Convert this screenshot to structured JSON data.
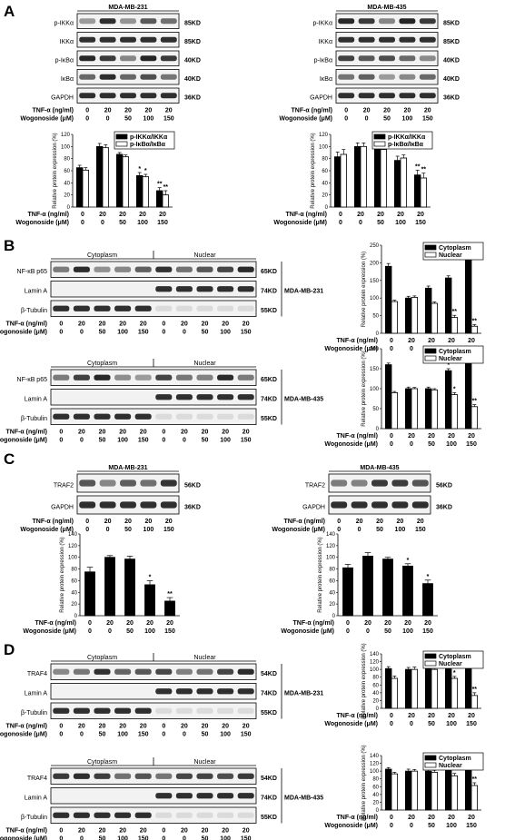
{
  "panels": [
    {
      "letter": "A",
      "blot_groups": [
        {
          "cell_line": "MDA-MB-231",
          "rows": [
            {
              "label": "p-IKKα",
              "kd": "85KD"
            },
            {
              "label": "IKKα",
              "kd": "85KD"
            },
            {
              "label": "p-IκBα",
              "kd": "40KD"
            },
            {
              "label": "IκBα",
              "kd": "40KD"
            },
            {
              "label": "GAPDH",
              "kd": "36KD"
            }
          ],
          "conditions": {
            "tnf_label": "TNF-α (ng/ml)",
            "wogonoside_label": "Wogonoside (μM)",
            "tnf": [
              "0",
              "20",
              "20",
              "20",
              "20"
            ],
            "wogonoside": [
              "0",
              "0",
              "50",
              "100",
              "150"
            ]
          }
        },
        {
          "cell_line": "MDA-MB-435",
          "rows": [
            {
              "label": "p-IKKα",
              "kd": "85KD"
            },
            {
              "label": "IKKα",
              "kd": "85KD"
            },
            {
              "label": "p-IκBα",
              "kd": "40KD"
            },
            {
              "label": "IκBα",
              "kd": "40KD"
            },
            {
              "label": "GAPDH",
              "kd": "36KD"
            }
          ],
          "conditions": {
            "tnf_label": "TNF-α (ng/ml)",
            "wogonoside_label": "Wogonoside (μM)",
            "tnf": [
              "0",
              "20",
              "20",
              "20",
              "20"
            ],
            "wogonoside": [
              "0",
              "0",
              "50",
              "100",
              "150"
            ]
          }
        }
      ]
    },
    {
      "letter": "B",
      "blot_groups": [
        {
          "cell_line": "MDA-MB-231",
          "fractions": [
            "Cytoplasm",
            "Nuclear"
          ],
          "rows": [
            {
              "label": "NF-κB p65",
              "kd": "65KD"
            },
            {
              "label": "Lamin A",
              "kd": "74KD"
            },
            {
              "label": "β-Tubulin",
              "kd": "55KD"
            }
          ],
          "conditions": {
            "tnf_label": "TNF-α (ng/ml)",
            "wogonoside_label": "Wogonoside (μM)",
            "tnf": [
              "0",
              "20",
              "20",
              "20",
              "20",
              "0",
              "20",
              "20",
              "20",
              "20"
            ],
            "wogonoside": [
              "0",
              "0",
              "50",
              "100",
              "150",
              "0",
              "0",
              "50",
              "100",
              "150"
            ]
          }
        },
        {
          "cell_line": "MDA-MB-435",
          "fractions": [
            "Cytoplasm",
            "Nuclear"
          ],
          "rows": [
            {
              "label": "NF-κB p65",
              "kd": "65KD"
            },
            {
              "label": "Lamin A",
              "kd": "74KD"
            },
            {
              "label": "β-Tubulin",
              "kd": "55KD"
            }
          ],
          "conditions": {
            "tnf_label": "TNF-α (ng/ml)",
            "wogonoside_label": "Wogonoside (μM)",
            "tnf": [
              "0",
              "20",
              "20",
              "20",
              "20",
              "0",
              "20",
              "20",
              "20",
              "20"
            ],
            "wogonoside": [
              "0",
              "0",
              "50",
              "100",
              "150",
              "0",
              "0",
              "50",
              "100",
              "150"
            ]
          }
        }
      ]
    },
    {
      "letter": "C",
      "blot_groups": [
        {
          "cell_line": "MDA-MB-231",
          "rows": [
            {
              "label": "TRAF2",
              "kd": "56KD"
            },
            {
              "label": "GAPDH",
              "kd": "36KD"
            }
          ],
          "conditions": {
            "tnf_label": "TNF-α (ng/ml)",
            "wogonoside_label": "Wogonoside (μM)",
            "tnf": [
              "0",
              "20",
              "20",
              "20",
              "20"
            ],
            "wogonoside": [
              "0",
              "0",
              "50",
              "100",
              "150"
            ]
          }
        },
        {
          "cell_line": "MDA-MB-435",
          "rows": [
            {
              "label": "TRAF2",
              "kd": "56KD"
            },
            {
              "label": "GAPDH",
              "kd": "36KD"
            }
          ],
          "conditions": {
            "tnf_label": "TNF-α (ng/ml)",
            "wogonoside_label": "Wogonoside (μM)",
            "tnf": [
              "0",
              "20",
              "20",
              "20",
              "20"
            ],
            "wogonoside": [
              "0",
              "0",
              "50",
              "100",
              "150"
            ]
          }
        }
      ]
    },
    {
      "letter": "D",
      "blot_groups": [
        {
          "cell_line": "MDA-MB-231",
          "fractions": [
            "Cytoplasm",
            "Nuclear"
          ],
          "rows": [
            {
              "label": "TRAF4",
              "kd": "54KD"
            },
            {
              "label": "Lamin A",
              "kd": "74KD"
            },
            {
              "label": "β-Tubulin",
              "kd": "55KD"
            }
          ],
          "conditions": {
            "tnf_label": "TNF-α (ng/ml)",
            "wogonoside_label": "Wogonoside (μM)",
            "tnf": [
              "0",
              "20",
              "20",
              "20",
              "20",
              "0",
              "20",
              "20",
              "20",
              "20"
            ],
            "wogonoside": [
              "0",
              "0",
              "50",
              "100",
              "150",
              "0",
              "0",
              "50",
              "100",
              "150"
            ]
          }
        },
        {
          "cell_line": "MDA-MB-435",
          "fractions": [
            "Cytoplasm",
            "Nuclear"
          ],
          "rows": [
            {
              "label": "TRAF4",
              "kd": "54KD"
            },
            {
              "label": "Lamin A",
              "kd": "74KD"
            },
            {
              "label": "β-Tubulin",
              "kd": "55KD"
            }
          ],
          "conditions": {
            "tnf_label": "TNF-α (ng/ml)",
            "wogonoside_label": "Wogonoside (μM)",
            "tnf": [
              "0",
              "20",
              "20",
              "20",
              "20",
              "0",
              "20",
              "20",
              "20",
              "20"
            ],
            "wogonoside": [
              "0",
              "0",
              "50",
              "100",
              "150",
              "0",
              "0",
              "50",
              "100",
              "150"
            ]
          }
        }
      ]
    }
  ],
  "chart_data": [
    {
      "id": "A-231",
      "type": "bar",
      "ylabel": "Relative protein expression (%)",
      "ylim": [
        0,
        120
      ],
      "yticks": [
        0,
        20,
        40,
        60,
        80,
        100,
        120
      ],
      "cond_labels": {
        "tnf": "TNF-α (ng/ml)",
        "wogonoside": "Wogonoside (μM)"
      },
      "tnf": [
        "0",
        "20",
        "20",
        "20",
        "20"
      ],
      "wogonoside": [
        "0",
        "0",
        "50",
        "100",
        "150"
      ],
      "legend": "top-right",
      "series": [
        {
          "name": "p-IKKα/IKKα",
          "fill": "#000000",
          "values": [
            65,
            100,
            87,
            52,
            27
          ],
          "errors": [
            4,
            5,
            3,
            5,
            5
          ],
          "sig": [
            "",
            "",
            "",
            "*",
            "**"
          ]
        },
        {
          "name": "p-IκBα/IκBα",
          "fill": "#ffffff",
          "values": [
            61,
            98,
            83,
            50,
            20
          ],
          "errors": [
            4,
            5,
            3,
            4,
            7
          ],
          "sig": [
            "",
            "",
            "",
            "*",
            "**"
          ]
        }
      ]
    },
    {
      "id": "A-435",
      "type": "bar",
      "ylabel": "Relative protein expression (%)",
      "ylim": [
        0,
        120
      ],
      "yticks": [
        0,
        20,
        40,
        60,
        80,
        100,
        120
      ],
      "cond_labels": {
        "tnf": "TNF-α (ng/ml)",
        "wogonoside": "Wogonoside (μM)"
      },
      "tnf": [
        "0",
        "20",
        "20",
        "20",
        "20"
      ],
      "wogonoside": [
        "0",
        "0",
        "50",
        "100",
        "150"
      ],
      "legend": "top-right",
      "series": [
        {
          "name": "p-IKKα/IKKα",
          "fill": "#000000",
          "values": [
            83,
            100,
            98,
            77,
            53
          ],
          "errors": [
            8,
            6,
            4,
            7,
            8
          ],
          "sig": [
            "",
            "",
            "",
            "",
            "**"
          ]
        },
        {
          "name": "p-IκBα/IκBα",
          "fill": "#ffffff",
          "values": [
            87,
            100,
            95,
            81,
            48
          ],
          "errors": [
            8,
            6,
            4,
            5,
            8
          ],
          "sig": [
            "",
            "",
            "",
            "",
            "**"
          ]
        }
      ]
    },
    {
      "id": "B-231",
      "type": "bar",
      "ylabel": "Relative protein expression (%)",
      "ylim": [
        0,
        250
      ],
      "yticks": [
        0,
        50,
        100,
        150,
        200,
        250
      ],
      "cond_labels": {
        "tnf": "TNF-α (ng/ml)",
        "wogonoside": "Wogonoside (μM)"
      },
      "tnf": [
        "0",
        "20",
        "20",
        "20",
        "20"
      ],
      "wogonoside": [
        "0",
        "0",
        "50",
        "100",
        "150"
      ],
      "legend": "top-right",
      "series": [
        {
          "name": "Cytoplasm",
          "fill": "#000000",
          "values": [
            190,
            100,
            128,
            157,
            228
          ],
          "errors": [
            8,
            5,
            6,
            6,
            5
          ],
          "sig": [
            "",
            "",
            "",
            "",
            "**"
          ]
        },
        {
          "name": "Nuclear",
          "fill": "#ffffff",
          "values": [
            90,
            102,
            85,
            45,
            20
          ],
          "errors": [
            4,
            4,
            4,
            6,
            5
          ],
          "sig": [
            "",
            "",
            "",
            "**",
            "**"
          ]
        }
      ]
    },
    {
      "id": "B-435",
      "type": "bar",
      "ylabel": "Relative protein expression (%)",
      "ylim": [
        0,
        200
      ],
      "yticks": [
        0,
        50,
        100,
        150,
        200
      ],
      "cond_labels": {
        "tnf": "TNF-α (ng/ml)",
        "wogonoside": "Wogonoside (μM)"
      },
      "tnf": [
        "0",
        "20",
        "20",
        "20",
        "20"
      ],
      "wogonoside": [
        "0",
        "0",
        "50",
        "100",
        "150"
      ],
      "legend": "top-right",
      "series": [
        {
          "name": "Cytoplasm",
          "fill": "#000000",
          "values": [
            160,
            100,
            100,
            145,
            165
          ],
          "errors": [
            4,
            4,
            4,
            5,
            4
          ],
          "sig": [
            "",
            "",
            "",
            "*",
            "**"
          ]
        },
        {
          "name": "Nuclear",
          "fill": "#ffffff",
          "values": [
            90,
            100,
            97,
            85,
            55
          ],
          "errors": [
            3,
            3,
            3,
            5,
            5
          ],
          "sig": [
            "",
            "",
            "",
            "*",
            "**"
          ]
        }
      ]
    },
    {
      "id": "C-231",
      "type": "bar",
      "ylabel": "Relative protein expression (%)",
      "ylim": [
        0,
        140
      ],
      "yticks": [
        0,
        20,
        40,
        60,
        80,
        100,
        120,
        140
      ],
      "cond_labels": {
        "tnf": "TNF-α (ng/ml)",
        "wogonoside": "Wogonoside (μM)"
      },
      "tnf": [
        "0",
        "20",
        "20",
        "20",
        "20"
      ],
      "wogonoside": [
        "0",
        "0",
        "50",
        "100",
        "150"
      ],
      "legend": "none",
      "series": [
        {
          "fill": "#000000",
          "values": [
            75,
            100,
            97,
            53,
            25
          ],
          "errors": [
            8,
            3,
            5,
            7,
            6
          ],
          "sig": [
            "",
            "",
            "",
            "*",
            "**"
          ]
        }
      ]
    },
    {
      "id": "C-435",
      "type": "bar",
      "ylabel": "Relative protein expression (%)",
      "ylim": [
        0,
        140
      ],
      "yticks": [
        0,
        20,
        40,
        60,
        80,
        100,
        120,
        140
      ],
      "cond_labels": {
        "tnf": "TNF-α (ng/ml)",
        "wogonoside": "Wogonoside (μM)"
      },
      "tnf": [
        "0",
        "20",
        "20",
        "20",
        "20"
      ],
      "wogonoside": [
        "0",
        "0",
        "50",
        "100",
        "150"
      ],
      "legend": "none",
      "series": [
        {
          "fill": "#000000",
          "values": [
            82,
            102,
            97,
            85,
            55
          ],
          "errors": [
            6,
            6,
            3,
            4,
            6
          ],
          "sig": [
            "",
            "",
            "",
            "*",
            "*"
          ]
        }
      ]
    },
    {
      "id": "D-231",
      "type": "bar",
      "ylabel": "Relative protein expression (%)",
      "ylim": [
        0,
        140
      ],
      "yticks": [
        0,
        20,
        40,
        60,
        80,
        100,
        120,
        140
      ],
      "cond_labels": {
        "tnf": "TNF-α (ng/ml)",
        "wogonoside": "Wogonoside (μM)"
      },
      "tnf": [
        "0",
        "20",
        "20",
        "20",
        "20"
      ],
      "wogonoside": [
        "0",
        "0",
        "50",
        "100",
        "150"
      ],
      "legend": "top-right",
      "series": [
        {
          "name": "Cytoplasm",
          "fill": "#000000",
          "values": [
            102,
            100,
            102,
            108,
            112
          ],
          "errors": [
            5,
            5,
            6,
            7,
            6
          ],
          "sig": [
            "",
            "",
            "",
            "",
            ""
          ]
        },
        {
          "name": "Nuclear",
          "fill": "#ffffff",
          "values": [
            77,
            100,
            100,
            77,
            33
          ],
          "errors": [
            6,
            6,
            6,
            5,
            7
          ],
          "sig": [
            "",
            "",
            "",
            "*",
            "**"
          ]
        }
      ]
    },
    {
      "id": "D-435",
      "type": "bar",
      "ylabel": "Relative protein expression (%)",
      "ylim": [
        0,
        140
      ],
      "yticks": [
        0,
        20,
        40,
        60,
        80,
        100,
        120,
        140
      ],
      "cond_labels": {
        "tnf": "TNF-α (ng/ml)",
        "wogonoside": "Wogonoside (μM)"
      },
      "tnf": [
        "0",
        "20",
        "20",
        "20",
        "20"
      ],
      "wogonoside": [
        "0",
        "0",
        "50",
        "100",
        "150"
      ],
      "legend": "top-right",
      "series": [
        {
          "name": "Cytoplasm",
          "fill": "#000000",
          "values": [
            105,
            100,
            100,
            105,
            108
          ],
          "errors": [
            4,
            5,
            6,
            7,
            6
          ],
          "sig": [
            "",
            "",
            "",
            "",
            ""
          ]
        },
        {
          "name": "Nuclear",
          "fill": "#ffffff",
          "values": [
            93,
            100,
            97,
            88,
            63
          ],
          "errors": [
            4,
            4,
            5,
            6,
            7
          ],
          "sig": [
            "",
            "",
            "",
            "",
            "**"
          ]
        }
      ]
    }
  ]
}
